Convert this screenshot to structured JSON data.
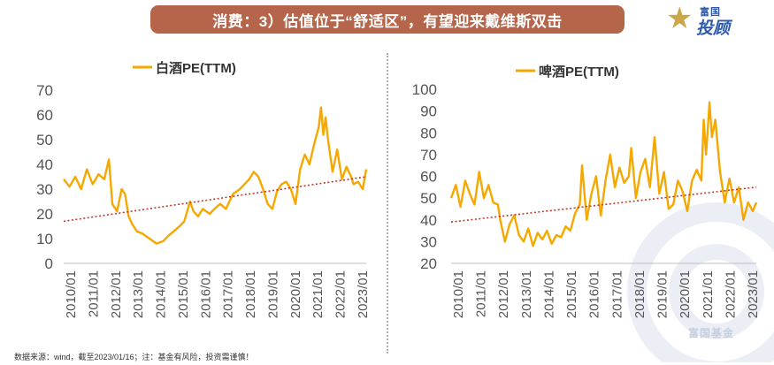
{
  "header": {
    "title": "消费：3）估值位于“舒适区”，有望迎来戴维斯双击"
  },
  "logo": {
    "line1": "富国",
    "line2": "投顾",
    "star_glyph": "★"
  },
  "footer": {
    "text": "数据来源：wind，截至2023/01/16；注：基金有风险，投资需谨慎！"
  },
  "watermark": {
    "text": "富国基金"
  },
  "colors": {
    "series": "#f5a800",
    "trend": "#c0392b",
    "title_bg": "#b5654a",
    "logo_blue": "#2f5aa8",
    "logo_gold": "#c9a74a"
  },
  "chart_data": [
    {
      "type": "line",
      "title": "白酒PE(TTM)",
      "legend": "top-center",
      "ylim": [
        0,
        70
      ],
      "yticks": [
        0,
        10,
        20,
        30,
        40,
        50,
        60,
        70
      ],
      "xlim": [
        2010.0,
        2023.05
      ],
      "xticks": [
        "2010/01",
        "2011/01",
        "2012/01",
        "2013/01",
        "2014/01",
        "2015/01",
        "2016/01",
        "2017/01",
        "2018/01",
        "2019/01",
        "2020/01",
        "2021/01",
        "2022/01",
        "2023/01"
      ],
      "grid": false,
      "series": [
        {
          "name": "白酒PE(TTM)",
          "x": [
            2010.0,
            2010.25,
            2010.5,
            2010.75,
            2011.0,
            2011.25,
            2011.5,
            2011.75,
            2011.95,
            2012.1,
            2012.3,
            2012.5,
            2012.65,
            2012.8,
            2012.95,
            2013.15,
            2013.4,
            2013.7,
            2014.0,
            2014.3,
            2014.5,
            2014.75,
            2015.0,
            2015.2,
            2015.45,
            2015.6,
            2015.8,
            2016.0,
            2016.3,
            2016.5,
            2016.75,
            2017.0,
            2017.3,
            2017.6,
            2017.8,
            2018.0,
            2018.2,
            2018.4,
            2018.6,
            2018.8,
            2019.0,
            2019.2,
            2019.4,
            2019.6,
            2019.8,
            2020.0,
            2020.2,
            2020.4,
            2020.6,
            2020.8,
            2021.0,
            2021.1,
            2021.2,
            2021.3,
            2021.4,
            2021.6,
            2021.8,
            2022.0,
            2022.2,
            2022.4,
            2022.5,
            2022.7,
            2022.9,
            2023.05
          ],
          "y": [
            34,
            31,
            35,
            30,
            38,
            32,
            36,
            34,
            42,
            24,
            21,
            30,
            28,
            19,
            16,
            13,
            12,
            10,
            8,
            9,
            11,
            13,
            15,
            17,
            25,
            21,
            19,
            22,
            20,
            22,
            24,
            22,
            28,
            30,
            32,
            34,
            37,
            35,
            30,
            24,
            22,
            29,
            32,
            33,
            30,
            24,
            38,
            44,
            40,
            48,
            55,
            63,
            52,
            59,
            50,
            37,
            46,
            34,
            39,
            35,
            32,
            33,
            30,
            38
          ]
        },
        {
          "name": "trend",
          "style": "dotted",
          "x": [
            2010.0,
            2023.05
          ],
          "y": [
            17,
            35
          ]
        }
      ]
    },
    {
      "type": "line",
      "title": "啤酒PE(TTM)",
      "legend": "top-center",
      "ylim": [
        20,
        100
      ],
      "yticks": [
        20,
        30,
        40,
        50,
        60,
        70,
        80,
        90,
        100
      ],
      "xlim": [
        2010.0,
        2023.05
      ],
      "xticks": [
        "2010/01",
        "2011/01",
        "2012/01",
        "2013/01",
        "2014/01",
        "2015/01",
        "2016/01",
        "2017/01",
        "2018/01",
        "2019/01",
        "2020/01",
        "2021/01",
        "2022/01",
        "2023/01"
      ],
      "grid": false,
      "series": [
        {
          "name": "啤酒PE(TTM)",
          "x": [
            2010.0,
            2010.2,
            2010.4,
            2010.6,
            2010.8,
            2011.0,
            2011.2,
            2011.4,
            2011.6,
            2011.8,
            2012.0,
            2012.1,
            2012.3,
            2012.5,
            2012.7,
            2012.9,
            2013.1,
            2013.3,
            2013.5,
            2013.7,
            2013.9,
            2014.1,
            2014.3,
            2014.5,
            2014.7,
            2014.9,
            2015.1,
            2015.3,
            2015.5,
            2015.6,
            2015.8,
            2016.0,
            2016.2,
            2016.4,
            2016.6,
            2016.8,
            2017.0,
            2017.2,
            2017.4,
            2017.6,
            2017.7,
            2017.9,
            2018.1,
            2018.3,
            2018.5,
            2018.7,
            2018.9,
            2019.1,
            2019.3,
            2019.5,
            2019.7,
            2019.9,
            2020.1,
            2020.3,
            2020.5,
            2020.7,
            2020.8,
            2020.9,
            2021.05,
            2021.15,
            2021.3,
            2021.5,
            2021.7,
            2021.9,
            2022.1,
            2022.3,
            2022.5,
            2022.7,
            2022.9,
            2023.05
          ],
          "y": [
            50,
            56,
            46,
            58,
            52,
            47,
            62,
            50,
            56,
            48,
            47,
            40,
            30,
            38,
            42,
            33,
            30,
            36,
            28,
            34,
            31,
            35,
            29,
            33,
            32,
            37,
            35,
            43,
            47,
            65,
            40,
            52,
            60,
            42,
            58,
            70,
            55,
            64,
            57,
            60,
            73,
            50,
            62,
            68,
            55,
            78,
            52,
            62,
            45,
            47,
            58,
            53,
            44,
            58,
            63,
            58,
            86,
            70,
            94,
            78,
            86,
            62,
            48,
            59,
            48,
            55,
            40,
            48,
            44,
            48
          ]
        },
        {
          "name": "trend",
          "style": "dotted",
          "x": [
            2010.0,
            2023.05
          ],
          "y": [
            39,
            55
          ]
        }
      ]
    }
  ]
}
